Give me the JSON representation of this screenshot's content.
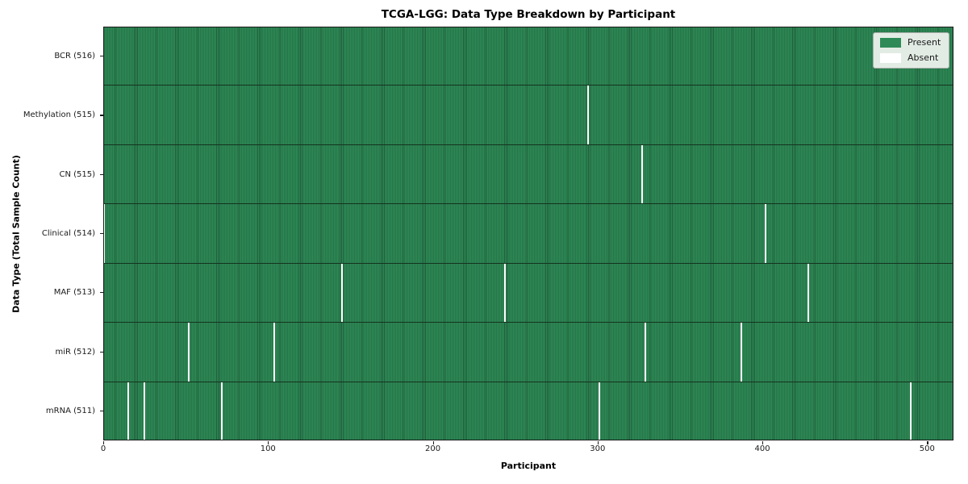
{
  "chart_data": {
    "type": "heatmap",
    "title": "TCGA-LGG: Data Type Breakdown by Participant",
    "xlabel": "Participant",
    "ylabel": "Data Type (Total Sample Count)",
    "total_participants": 516,
    "x_ticks": [
      0,
      100,
      200,
      300,
      400,
      500
    ],
    "x_range": [
      0,
      516
    ],
    "grid": false,
    "legend": {
      "position": "upper right",
      "entries": [
        {
          "label": "Present",
          "color": "#2e8b57"
        },
        {
          "label": "Absent",
          "color": "#ffffff"
        }
      ]
    },
    "rows": [
      {
        "label": "BCR (516)",
        "data_type": "BCR",
        "sample_count": 516,
        "absent_participants": []
      },
      {
        "label": "Methylation (515)",
        "data_type": "Methylation",
        "sample_count": 515,
        "absent_participants": [
          294
        ]
      },
      {
        "label": "CN (515)",
        "data_type": "CN",
        "sample_count": 515,
        "absent_participants": [
          327
        ]
      },
      {
        "label": "Clinical (514)",
        "data_type": "Clinical",
        "sample_count": 514,
        "absent_participants": [
          0,
          402
        ]
      },
      {
        "label": "MAF (513)",
        "data_type": "MAF",
        "sample_count": 513,
        "absent_participants": [
          145,
          244,
          428
        ]
      },
      {
        "label": "miR (512)",
        "data_type": "miR",
        "sample_count": 512,
        "absent_participants": [
          52,
          104,
          329,
          387
        ]
      },
      {
        "label": "mRNA (511)",
        "data_type": "mRNA",
        "sample_count": 511,
        "absent_participants": [
          15,
          25,
          72,
          301,
          490
        ]
      }
    ]
  },
  "colors": {
    "present": "#2e8b57",
    "present_edge": "#1f5c3a",
    "absent": "#ffffff",
    "row_separator": "#15331f",
    "plot_border": "#1c1c1c",
    "legend_bg": "#f2f5f2",
    "legend_border": "#a8ada8",
    "text": "#1a1a1a"
  }
}
